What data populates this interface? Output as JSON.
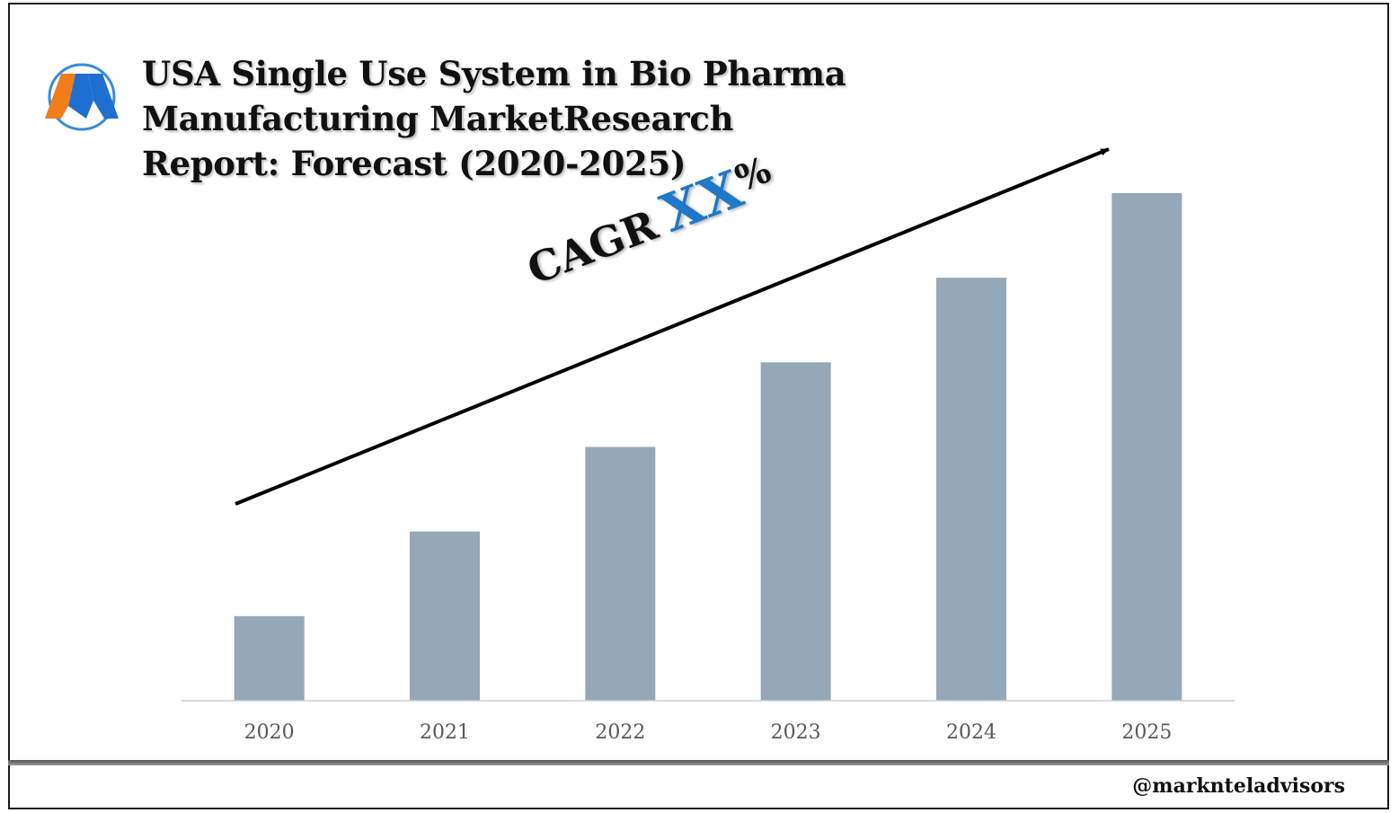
{
  "header": {
    "title_lines": [
      "USA Single Use System in Bio Pharma",
      "Manufacturing MarketResearch",
      "Report: Forecast (2020-2025)"
    ]
  },
  "annotation": {
    "cagr_label": "CAGR",
    "cagr_value": "XX",
    "cagr_suffix": "%"
  },
  "footer": {
    "handle": "@marknteladvisors"
  },
  "logo": {
    "letter": "M",
    "colors": {
      "orange": "#f07d1a",
      "blue": "#1f6fd1"
    }
  },
  "colors": {
    "bar": "#94a8b8",
    "axis_text": "#595959",
    "accent_value": "#1f78c8"
  },
  "chart_data": {
    "type": "bar",
    "categories": [
      "2020",
      "2021",
      "2022",
      "2023",
      "2024",
      "2025"
    ],
    "values": [
      1,
      2,
      3,
      4,
      5,
      6
    ],
    "ylim": [
      0,
      6
    ],
    "grid": false,
    "legend": "none",
    "trend_arrow": {
      "from": "2020",
      "to": "2025",
      "direction": "up"
    }
  }
}
